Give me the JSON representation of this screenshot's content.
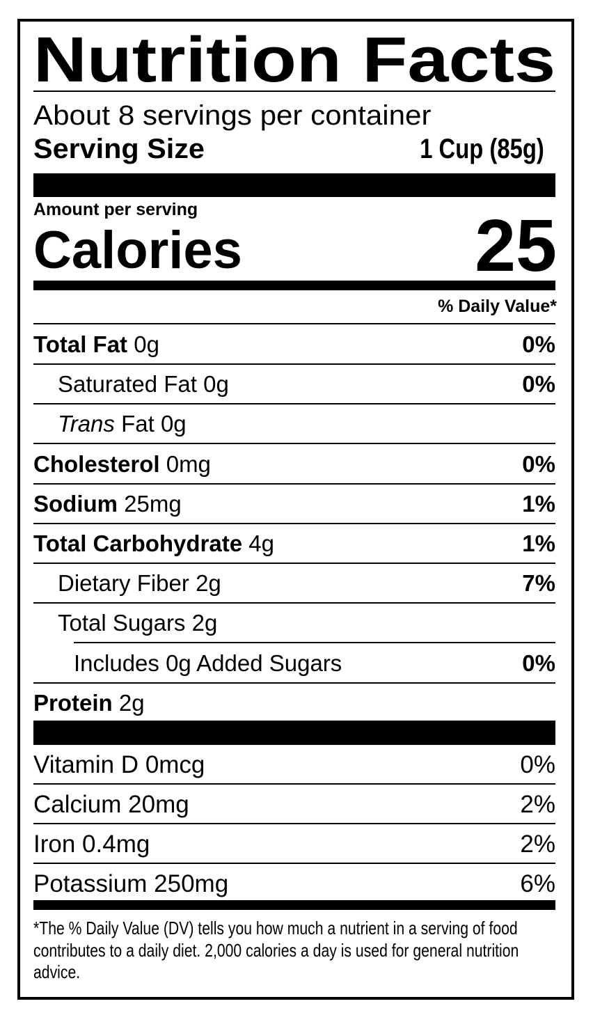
{
  "label": {
    "title": "Nutrition Facts",
    "servings_per_container": "About 8 servings per container",
    "serving_size_label": "Serving Size",
    "serving_size_value": "1 Cup (85g)",
    "amount_per_serving": "Amount per serving",
    "calories_label": "Calories",
    "calories_value": "25",
    "daily_value_header": "% Daily Value*",
    "nutrients": [
      {
        "name": "Total Fat",
        "amount": "0g",
        "dv": "0%"
      },
      {
        "name": "Saturated Fat",
        "amount": "0g",
        "dv": "0%"
      },
      {
        "name": "Trans",
        "name_suffix": "Fat",
        "amount": "0g",
        "dv": ""
      },
      {
        "name": "Cholesterol",
        "amount": "0mg",
        "dv": "0%"
      },
      {
        "name": "Sodium",
        "amount": "25mg",
        "dv": "1%"
      },
      {
        "name": "Total Carbohydrate",
        "amount": "4g",
        "dv": "1%"
      },
      {
        "name": "Dietary Fiber",
        "amount": "2g",
        "dv": "7%"
      },
      {
        "name": "Total Sugars",
        "amount": "2g",
        "dv": ""
      },
      {
        "name": "Includes 0g Added Sugars",
        "amount": "",
        "dv": "0%"
      },
      {
        "name": "Protein",
        "amount": "2g",
        "dv": ""
      }
    ],
    "vitamins": [
      {
        "name": "Vitamin D",
        "amount": "0mcg",
        "dv": "0%"
      },
      {
        "name": "Calcium",
        "amount": "20mg",
        "dv": "2%"
      },
      {
        "name": "Iron",
        "amount": "0.4mg",
        "dv": "2%"
      },
      {
        "name": "Potassium",
        "amount": "250mg",
        "dv": "6%"
      }
    ],
    "footnote": "*The % Daily Value (DV) tells you how much a nutrient in a serving of food contributes to a daily diet. 2,000 calories a day is used for general nutrition advice."
  }
}
